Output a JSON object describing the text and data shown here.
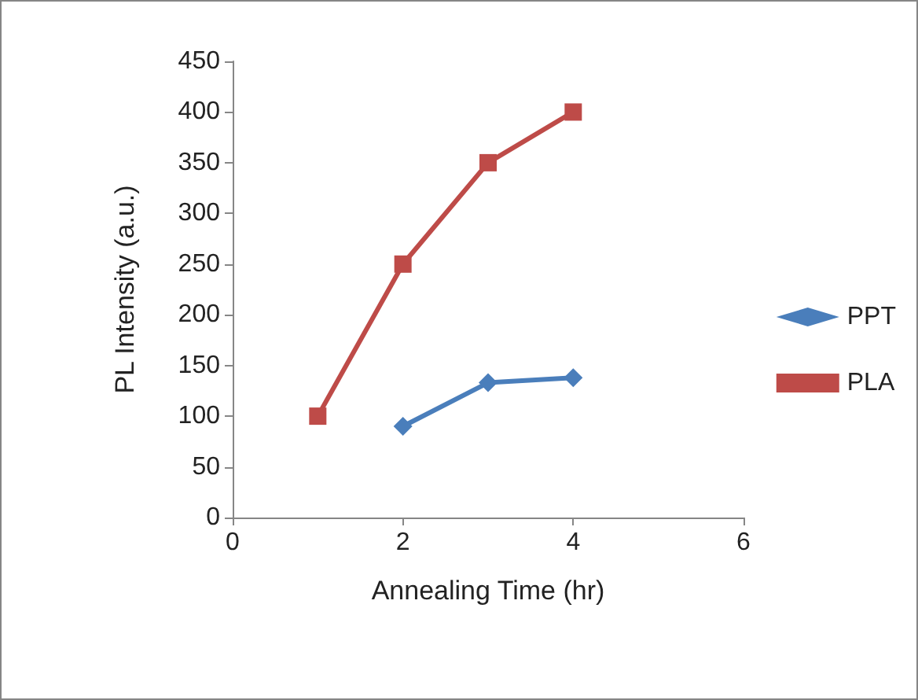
{
  "chart_data": {
    "type": "line",
    "xlabel": "Annealing Time (hr)",
    "ylabel": "PL Intensity (a.u.)",
    "xlim": [
      0,
      6
    ],
    "xticks": [
      0,
      2,
      4,
      6
    ],
    "ylim": [
      0,
      450
    ],
    "yticks": [
      0,
      50,
      100,
      150,
      200,
      250,
      300,
      350,
      400,
      450
    ],
    "grid": false,
    "legend": "right",
    "line_style": "solid",
    "series": [
      {
        "name": "PPT",
        "color": "#4a7ebb",
        "marker": "diamond",
        "x": [
          2,
          3,
          4
        ],
        "values": [
          90,
          133,
          138
        ]
      },
      {
        "name": "PLA",
        "color": "#be4b48",
        "marker": "square",
        "x": [
          1,
          2,
          3,
          4
        ],
        "values": [
          100,
          250,
          350,
          400
        ]
      }
    ]
  }
}
